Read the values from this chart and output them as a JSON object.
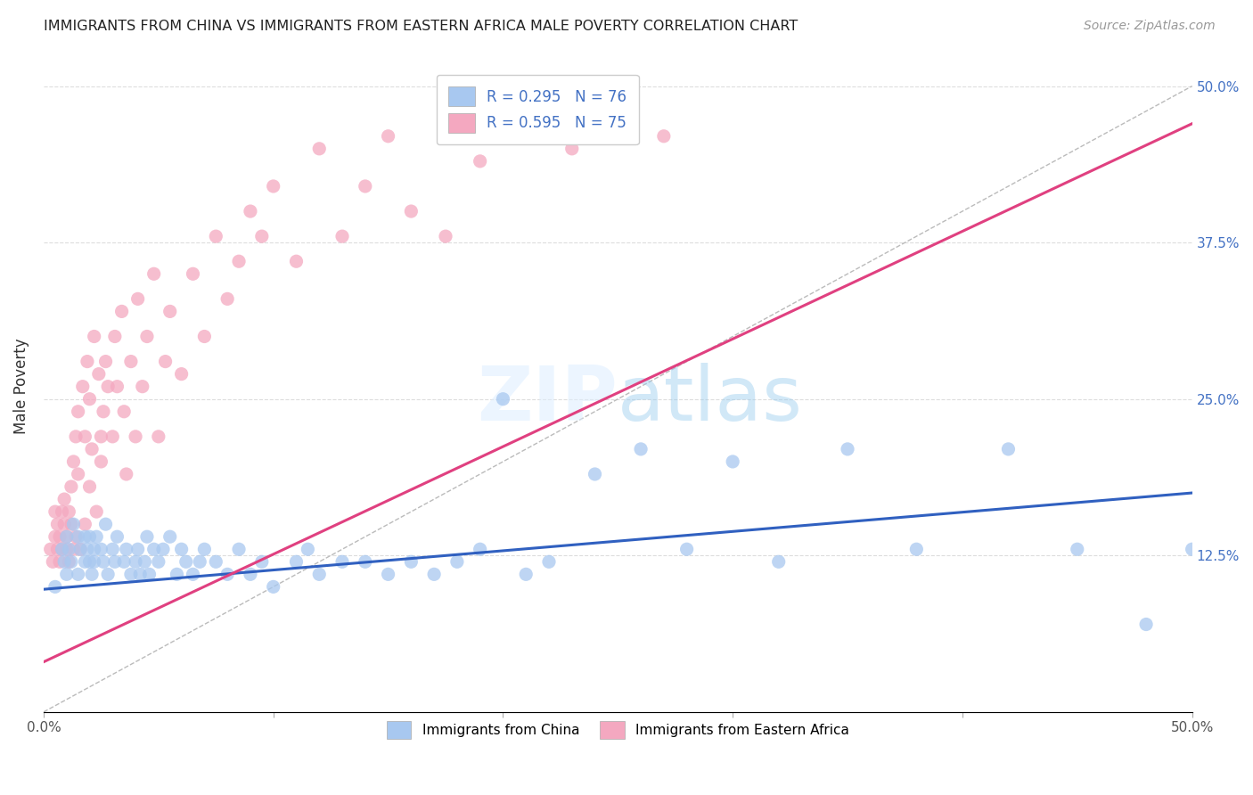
{
  "title": "IMMIGRANTS FROM CHINA VS IMMIGRANTS FROM EASTERN AFRICA MALE POVERTY CORRELATION CHART",
  "source": "Source: ZipAtlas.com",
  "ylabel": "Male Poverty",
  "china_R": 0.295,
  "china_N": 76,
  "africa_R": 0.595,
  "africa_N": 75,
  "china_color": "#a8c8f0",
  "africa_color": "#f4a8c0",
  "china_line_color": "#3060c0",
  "africa_line_color": "#e04080",
  "ref_line_color": "#bbbbbb",
  "xlim": [
    0.0,
    0.5
  ],
  "ylim": [
    0.0,
    0.52
  ],
  "yticks": [
    0.125,
    0.25,
    0.375,
    0.5
  ],
  "ytick_labels": [
    "12.5%",
    "25.0%",
    "37.5%",
    "50.0%"
  ],
  "china_scatter_x": [
    0.005,
    0.008,
    0.009,
    0.01,
    0.01,
    0.011,
    0.012,
    0.013,
    0.015,
    0.015,
    0.016,
    0.018,
    0.018,
    0.019,
    0.02,
    0.02,
    0.021,
    0.022,
    0.022,
    0.023,
    0.025,
    0.026,
    0.027,
    0.028,
    0.03,
    0.031,
    0.032,
    0.035,
    0.036,
    0.038,
    0.04,
    0.041,
    0.042,
    0.044,
    0.045,
    0.046,
    0.048,
    0.05,
    0.052,
    0.055,
    0.058,
    0.06,
    0.062,
    0.065,
    0.068,
    0.07,
    0.075,
    0.08,
    0.085,
    0.09,
    0.095,
    0.1,
    0.11,
    0.115,
    0.12,
    0.13,
    0.14,
    0.15,
    0.16,
    0.17,
    0.18,
    0.19,
    0.2,
    0.21,
    0.22,
    0.24,
    0.26,
    0.28,
    0.3,
    0.32,
    0.35,
    0.38,
    0.42,
    0.45,
    0.48,
    0.5
  ],
  "china_scatter_y": [
    0.1,
    0.13,
    0.12,
    0.14,
    0.11,
    0.13,
    0.12,
    0.15,
    0.11,
    0.14,
    0.13,
    0.12,
    0.14,
    0.13,
    0.12,
    0.14,
    0.11,
    0.13,
    0.12,
    0.14,
    0.13,
    0.12,
    0.15,
    0.11,
    0.13,
    0.12,
    0.14,
    0.12,
    0.13,
    0.11,
    0.12,
    0.13,
    0.11,
    0.12,
    0.14,
    0.11,
    0.13,
    0.12,
    0.13,
    0.14,
    0.11,
    0.13,
    0.12,
    0.11,
    0.12,
    0.13,
    0.12,
    0.11,
    0.13,
    0.11,
    0.12,
    0.1,
    0.12,
    0.13,
    0.11,
    0.12,
    0.12,
    0.11,
    0.12,
    0.11,
    0.12,
    0.13,
    0.25,
    0.11,
    0.12,
    0.19,
    0.21,
    0.13,
    0.2,
    0.12,
    0.21,
    0.13,
    0.21,
    0.13,
    0.07,
    0.13
  ],
  "africa_scatter_x": [
    0.003,
    0.004,
    0.005,
    0.005,
    0.006,
    0.006,
    0.007,
    0.007,
    0.008,
    0.008,
    0.009,
    0.009,
    0.01,
    0.01,
    0.011,
    0.011,
    0.012,
    0.012,
    0.013,
    0.013,
    0.014,
    0.014,
    0.015,
    0.015,
    0.016,
    0.017,
    0.018,
    0.018,
    0.019,
    0.02,
    0.02,
    0.021,
    0.022,
    0.023,
    0.024,
    0.025,
    0.025,
    0.026,
    0.027,
    0.028,
    0.03,
    0.031,
    0.032,
    0.034,
    0.035,
    0.036,
    0.038,
    0.04,
    0.041,
    0.043,
    0.045,
    0.048,
    0.05,
    0.053,
    0.055,
    0.06,
    0.065,
    0.07,
    0.075,
    0.08,
    0.085,
    0.09,
    0.095,
    0.1,
    0.11,
    0.12,
    0.13,
    0.14,
    0.15,
    0.16,
    0.175,
    0.19,
    0.21,
    0.23,
    0.27
  ],
  "africa_scatter_y": [
    0.13,
    0.12,
    0.14,
    0.16,
    0.13,
    0.15,
    0.14,
    0.12,
    0.16,
    0.13,
    0.15,
    0.17,
    0.14,
    0.13,
    0.16,
    0.12,
    0.18,
    0.15,
    0.2,
    0.13,
    0.22,
    0.14,
    0.19,
    0.24,
    0.13,
    0.26,
    0.22,
    0.15,
    0.28,
    0.18,
    0.25,
    0.21,
    0.3,
    0.16,
    0.27,
    0.22,
    0.2,
    0.24,
    0.28,
    0.26,
    0.22,
    0.3,
    0.26,
    0.32,
    0.24,
    0.19,
    0.28,
    0.22,
    0.33,
    0.26,
    0.3,
    0.35,
    0.22,
    0.28,
    0.32,
    0.27,
    0.35,
    0.3,
    0.38,
    0.33,
    0.36,
    0.4,
    0.38,
    0.42,
    0.36,
    0.45,
    0.38,
    0.42,
    0.46,
    0.4,
    0.38,
    0.44,
    0.48,
    0.45,
    0.46
  ]
}
